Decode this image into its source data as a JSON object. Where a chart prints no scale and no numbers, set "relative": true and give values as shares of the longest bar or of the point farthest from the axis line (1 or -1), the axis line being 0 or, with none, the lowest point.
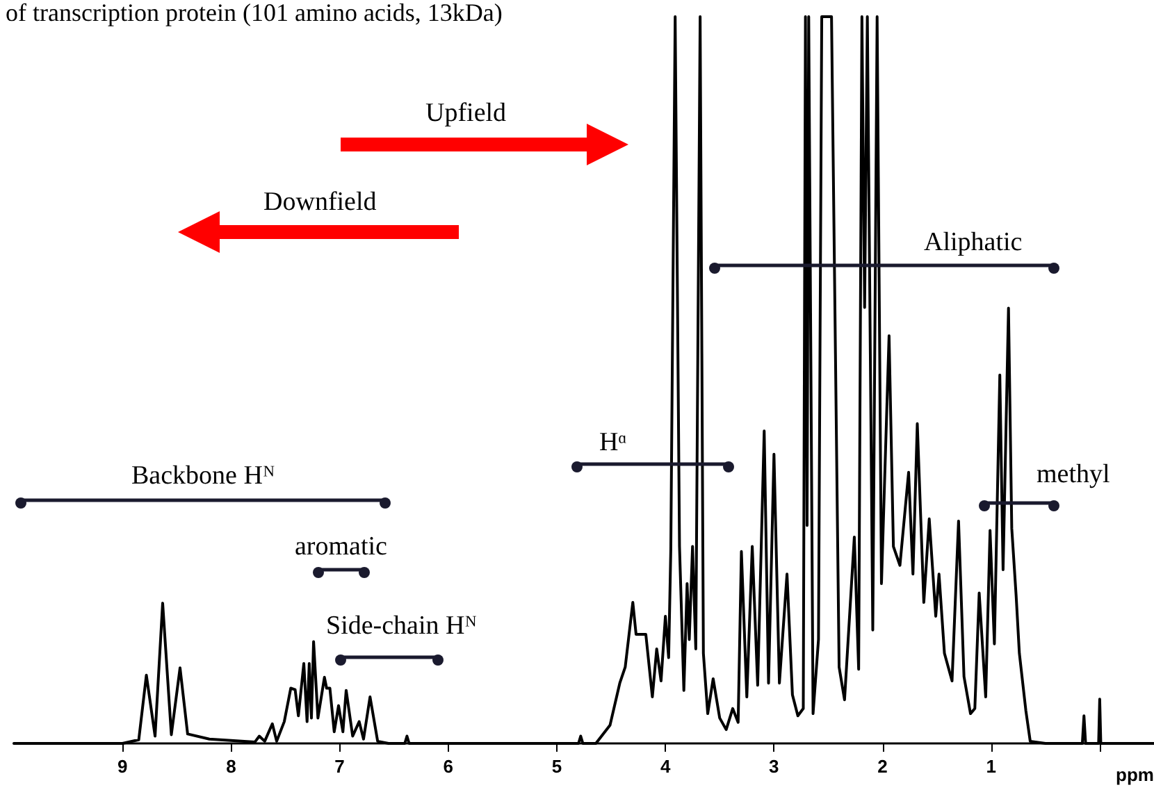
{
  "chart_data": {
    "type": "line",
    "title": "of transcription protein (101 amino acids, 13kDa)",
    "xlabel": "ppm",
    "relative": true,
    "xlim": [
      10,
      -0.5
    ],
    "xticks": [
      9,
      8,
      7,
      6,
      5,
      4,
      3,
      2,
      1,
      {
        "value": 0,
        "label": null
      }
    ],
    "grid": false,
    "marker": "none",
    "line_style": "solid",
    "annotations": [
      "Upfield",
      "Downfield",
      "Backbone Hᴺ",
      "aromatic",
      "Side-chain Hᴺ",
      "Hᵅ",
      "Aliphatic",
      "methyl"
    ],
    "series": [
      {
        "color": "#000000",
        "x": [
          10,
          9.0,
          8.85,
          8.78,
          8.7,
          8.63,
          8.55,
          8.47,
          8.4,
          8.2,
          8.0,
          7.78,
          7.74,
          7.69,
          7.62,
          7.58,
          7.51,
          7.45,
          7.41,
          7.38,
          7.33,
          7.3,
          7.28,
          7.26,
          7.24,
          7.2,
          7.14,
          7.12,
          7.09,
          7.05,
          7.01,
          6.97,
          6.94,
          6.88,
          6.82,
          6.78,
          6.72,
          6.65,
          6.55,
          6.4,
          6.38,
          6.36,
          4.8,
          4.78,
          4.76,
          4.64,
          4.51,
          4.42,
          4.37,
          4.3,
          4.27,
          4.18,
          4.12,
          4.08,
          4.04,
          4.0,
          3.97,
          3.95,
          3.91,
          3.87,
          3.83,
          3.8,
          3.78,
          3.75,
          3.72,
          3.68,
          3.65,
          3.61,
          3.56,
          3.5,
          3.44,
          3.38,
          3.33,
          3.3,
          3.25,
          3.2,
          3.15,
          3.09,
          3.05,
          3.0,
          2.95,
          2.88,
          2.83,
          2.78,
          2.73,
          2.71,
          2.695,
          2.68,
          2.64,
          2.59,
          2.56,
          2.53,
          2.5,
          2.47,
          2.4,
          2.35,
          2.26,
          2.22,
          2.19,
          2.165,
          2.14,
          2.09,
          2.05,
          2.01,
          1.94,
          1.9,
          1.84,
          1.76,
          1.72,
          1.68,
          1.62,
          1.57,
          1.51,
          1.48,
          1.43,
          1.36,
          1.3,
          1.25,
          1.19,
          1.15,
          1.11,
          1.05,
          1.01,
          0.97,
          0.92,
          0.89,
          0.84,
          0.81,
          0.77,
          0.74,
          0.68,
          0.64,
          0.5,
          0.16,
          0.145,
          0.13,
          0.01,
          0,
          -0.01,
          -0.5
        ],
        "values": [
          0,
          0,
          0.005,
          0.094,
          0.01,
          0.193,
          0.012,
          0.104,
          0.013,
          0.006,
          0.004,
          0.002,
          0.01,
          0.003,
          0.027,
          0.003,
          0.03,
          0.076,
          0.074,
          0.038,
          0.11,
          0.03,
          0.11,
          0.035,
          0.14,
          0.035,
          0.091,
          0.076,
          0.076,
          0.016,
          0.052,
          0.016,
          0.073,
          0.01,
          0.03,
          0.006,
          0.064,
          0.003,
          0,
          0,
          0.01,
          0,
          0,
          0.01,
          0,
          0,
          0.025,
          0.083,
          0.105,
          0.194,
          0.15,
          0.15,
          0.064,
          0.13,
          0.086,
          0.175,
          0.118,
          0.268,
          1,
          0.271,
          0.073,
          0.22,
          0.143,
          0.271,
          0.13,
          1,
          0.124,
          0.041,
          0.089,
          0.035,
          0.019,
          0.048,
          0.029,
          0.264,
          0.064,
          0.271,
          0.08,
          0.43,
          0.083,
          0.398,
          0.083,
          0.233,
          0.067,
          0.038,
          0.048,
          1,
          0.3,
          1,
          0.041,
          0.143,
          1,
          1,
          1,
          1,
          0.105,
          0.06,
          0.284,
          0.102,
          1,
          0.6,
          1,
          0.156,
          1,
          0.22,
          0.561,
          0.271,
          0.245,
          0.373,
          0.233,
          0.44,
          0.194,
          0.309,
          0.175,
          0.233,
          0.124,
          0.086,
          0.306,
          0.092,
          0.041,
          0.048,
          0.207,
          0.064,
          0.293,
          0.137,
          0.507,
          0.239,
          0.599,
          0.296,
          0.204,
          0.124,
          0.045,
          0.003,
          0,
          0,
          0.038,
          0,
          0,
          0.061,
          0,
          0
        ]
      }
    ]
  }
}
